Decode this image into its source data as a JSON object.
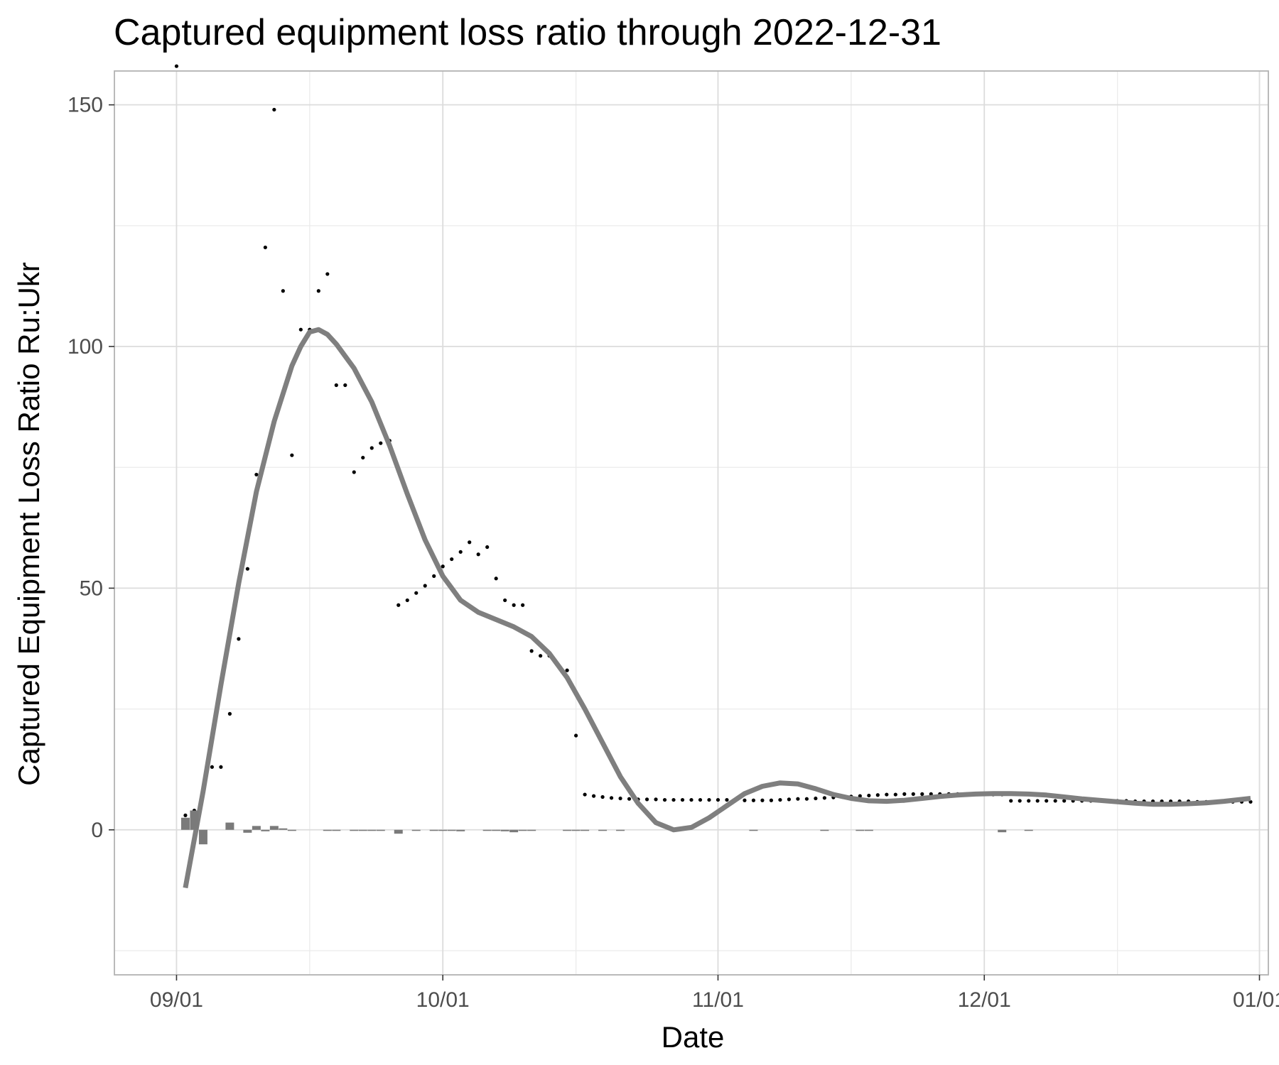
{
  "chart_data": {
    "type": "line",
    "title": "Captured equipment loss ratio through 2022-12-31",
    "xlabel": "Date",
    "ylabel": "Captured Equipment Loss Ratio Ru:Ukr",
    "x_axis": {
      "type": "date",
      "range": [
        "2022-08-25",
        "2023-01-02"
      ],
      "ticks": [
        {
          "date": "2022-09-01",
          "label": "09/01"
        },
        {
          "date": "2022-10-01",
          "label": "10/01"
        },
        {
          "date": "2022-11-01",
          "label": "11/01"
        },
        {
          "date": "2022-12-01",
          "label": "12/01"
        },
        {
          "date": "2023-01-01",
          "label": "01/01"
        }
      ],
      "minor_ticks": [
        "2022-09-16",
        "2022-10-16",
        "2022-11-16",
        "2022-12-16"
      ]
    },
    "y_axis": {
      "range": [
        -30,
        157
      ],
      "ticks": [
        0,
        50,
        100,
        150
      ],
      "minor_ticks": [
        -25,
        25,
        75,
        125
      ]
    },
    "grid": true,
    "series": [
      {
        "kind": "points",
        "points": [
          [
            "2022-09-01",
            158
          ],
          [
            "2022-09-02",
            3
          ],
          [
            "2022-09-03",
            4
          ],
          [
            "2022-09-04",
            8
          ],
          [
            "2022-09-05",
            13
          ],
          [
            "2022-09-06",
            13
          ],
          [
            "2022-09-07",
            24
          ],
          [
            "2022-09-08",
            39.5
          ],
          [
            "2022-09-09",
            54
          ],
          [
            "2022-09-10",
            73.5
          ],
          [
            "2022-09-11",
            120.5
          ],
          [
            "2022-09-12",
            149
          ],
          [
            "2022-09-13",
            111.5
          ],
          [
            "2022-09-14",
            77.5
          ],
          [
            "2022-09-15",
            103.5
          ],
          [
            "2022-09-16",
            103.5
          ],
          [
            "2022-09-17",
            111.5
          ],
          [
            "2022-09-18",
            115
          ],
          [
            "2022-09-19",
            92
          ],
          [
            "2022-09-20",
            92
          ],
          [
            "2022-09-21",
            74
          ],
          [
            "2022-09-22",
            77
          ],
          [
            "2022-09-23",
            79
          ],
          [
            "2022-09-24",
            80
          ],
          [
            "2022-09-25",
            80.5
          ],
          [
            "2022-09-26",
            46.5
          ],
          [
            "2022-09-27",
            47.5
          ],
          [
            "2022-09-28",
            49
          ],
          [
            "2022-09-29",
            50.5
          ],
          [
            "2022-09-30",
            52.5
          ],
          [
            "2022-10-01",
            54.5
          ],
          [
            "2022-10-02",
            56
          ],
          [
            "2022-10-03",
            57.5
          ],
          [
            "2022-10-04",
            59.5
          ],
          [
            "2022-10-05",
            57
          ],
          [
            "2022-10-06",
            58.5
          ],
          [
            "2022-10-07",
            52
          ],
          [
            "2022-10-08",
            47.5
          ],
          [
            "2022-10-09",
            46.5
          ],
          [
            "2022-10-10",
            46.5
          ],
          [
            "2022-10-11",
            37
          ],
          [
            "2022-10-12",
            36
          ],
          [
            "2022-10-13",
            36
          ],
          [
            "2022-10-14",
            34
          ],
          [
            "2022-10-15",
            33
          ],
          [
            "2022-10-16",
            19.5
          ],
          [
            "2022-10-17",
            7.3
          ],
          [
            "2022-10-18",
            7.0
          ],
          [
            "2022-10-19",
            6.8
          ],
          [
            "2022-10-20",
            6.6
          ],
          [
            "2022-10-21",
            6.5
          ],
          [
            "2022-10-22",
            6.4
          ],
          [
            "2022-10-23",
            6.3
          ],
          [
            "2022-10-24",
            6.3
          ],
          [
            "2022-10-25",
            6.3
          ],
          [
            "2022-10-26",
            6.2
          ],
          [
            "2022-10-27",
            6.2
          ],
          [
            "2022-10-28",
            6.2
          ],
          [
            "2022-10-29",
            6.2
          ],
          [
            "2022-10-30",
            6.2
          ],
          [
            "2022-10-31",
            6.2
          ],
          [
            "2022-11-01",
            6.2
          ],
          [
            "2022-11-02",
            6.2
          ],
          [
            "2022-11-03",
            6.2
          ],
          [
            "2022-11-04",
            6.1
          ],
          [
            "2022-11-05",
            6.1
          ],
          [
            "2022-11-06",
            6.1
          ],
          [
            "2022-11-07",
            6.1
          ],
          [
            "2022-11-08",
            6.2
          ],
          [
            "2022-11-09",
            6.3
          ],
          [
            "2022-11-10",
            6.4
          ],
          [
            "2022-11-11",
            6.4
          ],
          [
            "2022-11-12",
            6.5
          ],
          [
            "2022-11-13",
            6.6
          ],
          [
            "2022-11-14",
            6.7
          ],
          [
            "2022-11-15",
            6.8
          ],
          [
            "2022-11-16",
            6.9
          ],
          [
            "2022-11-17",
            7.0
          ],
          [
            "2022-11-18",
            7.1
          ],
          [
            "2022-11-19",
            7.2
          ],
          [
            "2022-11-20",
            7.3
          ],
          [
            "2022-11-21",
            7.3
          ],
          [
            "2022-11-22",
            7.4
          ],
          [
            "2022-11-23",
            7.4
          ],
          [
            "2022-11-24",
            7.4
          ],
          [
            "2022-11-25",
            7.4
          ],
          [
            "2022-11-26",
            7.4
          ],
          [
            "2022-11-27",
            7.4
          ],
          [
            "2022-11-28",
            7.4
          ],
          [
            "2022-11-29",
            7.4
          ],
          [
            "2022-11-30",
            7.4
          ],
          [
            "2022-12-01",
            7.4
          ],
          [
            "2022-12-02",
            7.3
          ],
          [
            "2022-12-03",
            7.3
          ],
          [
            "2022-12-04",
            6.0
          ],
          [
            "2022-12-05",
            6.0
          ],
          [
            "2022-12-06",
            6.0
          ],
          [
            "2022-12-07",
            6.0
          ],
          [
            "2022-12-08",
            6.0
          ],
          [
            "2022-12-09",
            6.0
          ],
          [
            "2022-12-10",
            6.0
          ],
          [
            "2022-12-11",
            6.0
          ],
          [
            "2022-12-12",
            6.0
          ],
          [
            "2022-12-13",
            6.0
          ],
          [
            "2022-12-14",
            6.0
          ],
          [
            "2022-12-15",
            6.0
          ],
          [
            "2022-12-16",
            6.0
          ],
          [
            "2022-12-17",
            6.0
          ],
          [
            "2022-12-18",
            5.9
          ],
          [
            "2022-12-19",
            5.9
          ],
          [
            "2022-12-20",
            5.9
          ],
          [
            "2022-12-21",
            5.9
          ],
          [
            "2022-12-22",
            5.9
          ],
          [
            "2022-12-23",
            5.9
          ],
          [
            "2022-12-24",
            5.9
          ],
          [
            "2022-12-25",
            5.8
          ],
          [
            "2022-12-26",
            5.8
          ],
          [
            "2022-12-27",
            5.8
          ],
          [
            "2022-12-28",
            5.8
          ],
          [
            "2022-12-29",
            5.8
          ],
          [
            "2022-12-30",
            5.8
          ],
          [
            "2022-12-31",
            5.8
          ]
        ]
      },
      {
        "kind": "smooth",
        "points": [
          [
            "2022-09-02",
            -12
          ],
          [
            "2022-09-04",
            8
          ],
          [
            "2022-09-06",
            30
          ],
          [
            "2022-09-08",
            51
          ],
          [
            "2022-09-10",
            70
          ],
          [
            "2022-09-12",
            84.5
          ],
          [
            "2022-09-14",
            96
          ],
          [
            "2022-09-15",
            100
          ],
          [
            "2022-09-16",
            103
          ],
          [
            "2022-09-17",
            103.5
          ],
          [
            "2022-09-18",
            102.5
          ],
          [
            "2022-09-19",
            100.5
          ],
          [
            "2022-09-21",
            95.5
          ],
          [
            "2022-09-23",
            88.5
          ],
          [
            "2022-09-25",
            79.5
          ],
          [
            "2022-09-27",
            69.5
          ],
          [
            "2022-09-29",
            60
          ],
          [
            "2022-10-01",
            52.5
          ],
          [
            "2022-10-03",
            47.5
          ],
          [
            "2022-10-05",
            45
          ],
          [
            "2022-10-07",
            43.5
          ],
          [
            "2022-10-09",
            42
          ],
          [
            "2022-10-11",
            40
          ],
          [
            "2022-10-13",
            36.5
          ],
          [
            "2022-10-15",
            31.5
          ],
          [
            "2022-10-17",
            25
          ],
          [
            "2022-10-19",
            18
          ],
          [
            "2022-10-21",
            11
          ],
          [
            "2022-10-23",
            5.5
          ],
          [
            "2022-10-25",
            1.5
          ],
          [
            "2022-10-27",
            0
          ],
          [
            "2022-10-29",
            0.5
          ],
          [
            "2022-10-31",
            2.5
          ],
          [
            "2022-11-02",
            5
          ],
          [
            "2022-11-04",
            7.5
          ],
          [
            "2022-11-06",
            9
          ],
          [
            "2022-11-08",
            9.7
          ],
          [
            "2022-11-10",
            9.5
          ],
          [
            "2022-11-12",
            8.5
          ],
          [
            "2022-11-14",
            7.3
          ],
          [
            "2022-11-16",
            6.5
          ],
          [
            "2022-11-18",
            6
          ],
          [
            "2022-11-20",
            5.9
          ],
          [
            "2022-11-22",
            6.1
          ],
          [
            "2022-11-24",
            6.5
          ],
          [
            "2022-11-26",
            6.9
          ],
          [
            "2022-11-28",
            7.2
          ],
          [
            "2022-11-30",
            7.4
          ],
          [
            "2022-12-02",
            7.5
          ],
          [
            "2022-12-04",
            7.5
          ],
          [
            "2022-12-06",
            7.4
          ],
          [
            "2022-12-08",
            7.2
          ],
          [
            "2022-12-10",
            6.8
          ],
          [
            "2022-12-12",
            6.4
          ],
          [
            "2022-12-14",
            6.1
          ],
          [
            "2022-12-16",
            5.8
          ],
          [
            "2022-12-18",
            5.5
          ],
          [
            "2022-12-20",
            5.3
          ],
          [
            "2022-12-22",
            5.3
          ],
          [
            "2022-12-24",
            5.4
          ],
          [
            "2022-12-26",
            5.6
          ],
          [
            "2022-12-28",
            5.9
          ],
          [
            "2022-12-31",
            6.5
          ]
        ]
      },
      {
        "kind": "bars",
        "bars": [
          [
            "2022-09-02",
            2.5
          ],
          [
            "2022-09-03",
            4
          ],
          [
            "2022-09-04",
            -3
          ],
          [
            "2022-09-07",
            1.5
          ],
          [
            "2022-09-09",
            -0.6
          ],
          [
            "2022-09-10",
            0.8
          ],
          [
            "2022-09-11",
            -0.3
          ],
          [
            "2022-09-12",
            0.8
          ],
          [
            "2022-09-13",
            0.3
          ],
          [
            "2022-09-14",
            -0.2
          ],
          [
            "2022-09-18",
            -0.15
          ],
          [
            "2022-09-19",
            -0.1
          ],
          [
            "2022-09-21",
            -0.1
          ],
          [
            "2022-09-22",
            -0.1
          ],
          [
            "2022-09-23",
            -0.1
          ],
          [
            "2022-09-24",
            -0.1
          ],
          [
            "2022-09-26",
            -0.8
          ],
          [
            "2022-09-28",
            -0.1
          ],
          [
            "2022-09-30",
            -0.1
          ],
          [
            "2022-10-01",
            -0.1
          ],
          [
            "2022-10-02",
            -0.1
          ],
          [
            "2022-10-03",
            -0.3
          ],
          [
            "2022-10-06",
            -0.1
          ],
          [
            "2022-10-07",
            -0.2
          ],
          [
            "2022-10-08",
            -0.3
          ],
          [
            "2022-10-09",
            -0.5
          ],
          [
            "2022-10-10",
            -0.1
          ],
          [
            "2022-10-11",
            -0.2
          ],
          [
            "2022-10-15",
            -0.1
          ],
          [
            "2022-10-16",
            -0.1
          ],
          [
            "2022-10-17",
            -0.1
          ],
          [
            "2022-10-19",
            -0.1
          ],
          [
            "2022-10-21",
            -0.1
          ],
          [
            "2022-11-05",
            -0.1
          ],
          [
            "2022-11-13",
            -0.1
          ],
          [
            "2022-11-17",
            -0.1
          ],
          [
            "2022-11-18",
            -0.1
          ],
          [
            "2022-12-03",
            -0.5
          ],
          [
            "2022-12-06",
            -0.1
          ]
        ]
      }
    ]
  }
}
